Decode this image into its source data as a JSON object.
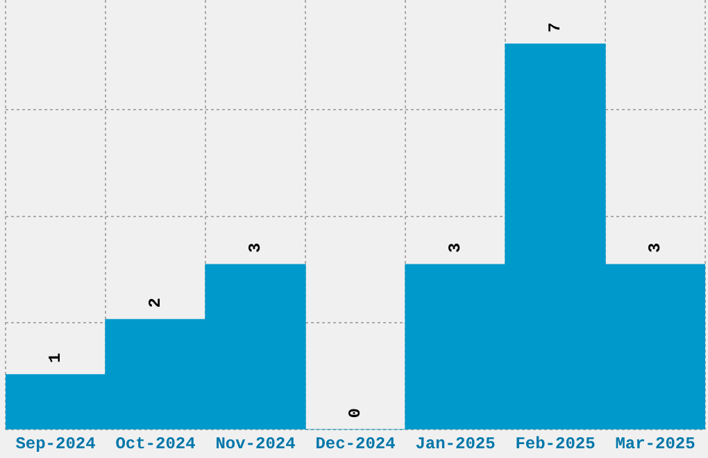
{
  "chart_data": {
    "type": "bar",
    "categories": [
      "Sep-2024",
      "Oct-2024",
      "Nov-2024",
      "Dec-2024",
      "Jan-2025",
      "Feb-2025",
      "Mar-2025"
    ],
    "values": [
      1,
      2,
      3,
      0,
      3,
      7,
      3
    ],
    "color": "#0099cc",
    "data_labels": true,
    "grid": true,
    "tick_labels": "x",
    "ylim": [
      0,
      7.8
    ],
    "yticks": [
      {
        "value": 0,
        "label": null
      },
      {
        "value": 1.94,
        "label": null
      },
      {
        "value": 3.87,
        "label": null
      },
      {
        "value": 5.81,
        "label": null
      }
    ]
  }
}
